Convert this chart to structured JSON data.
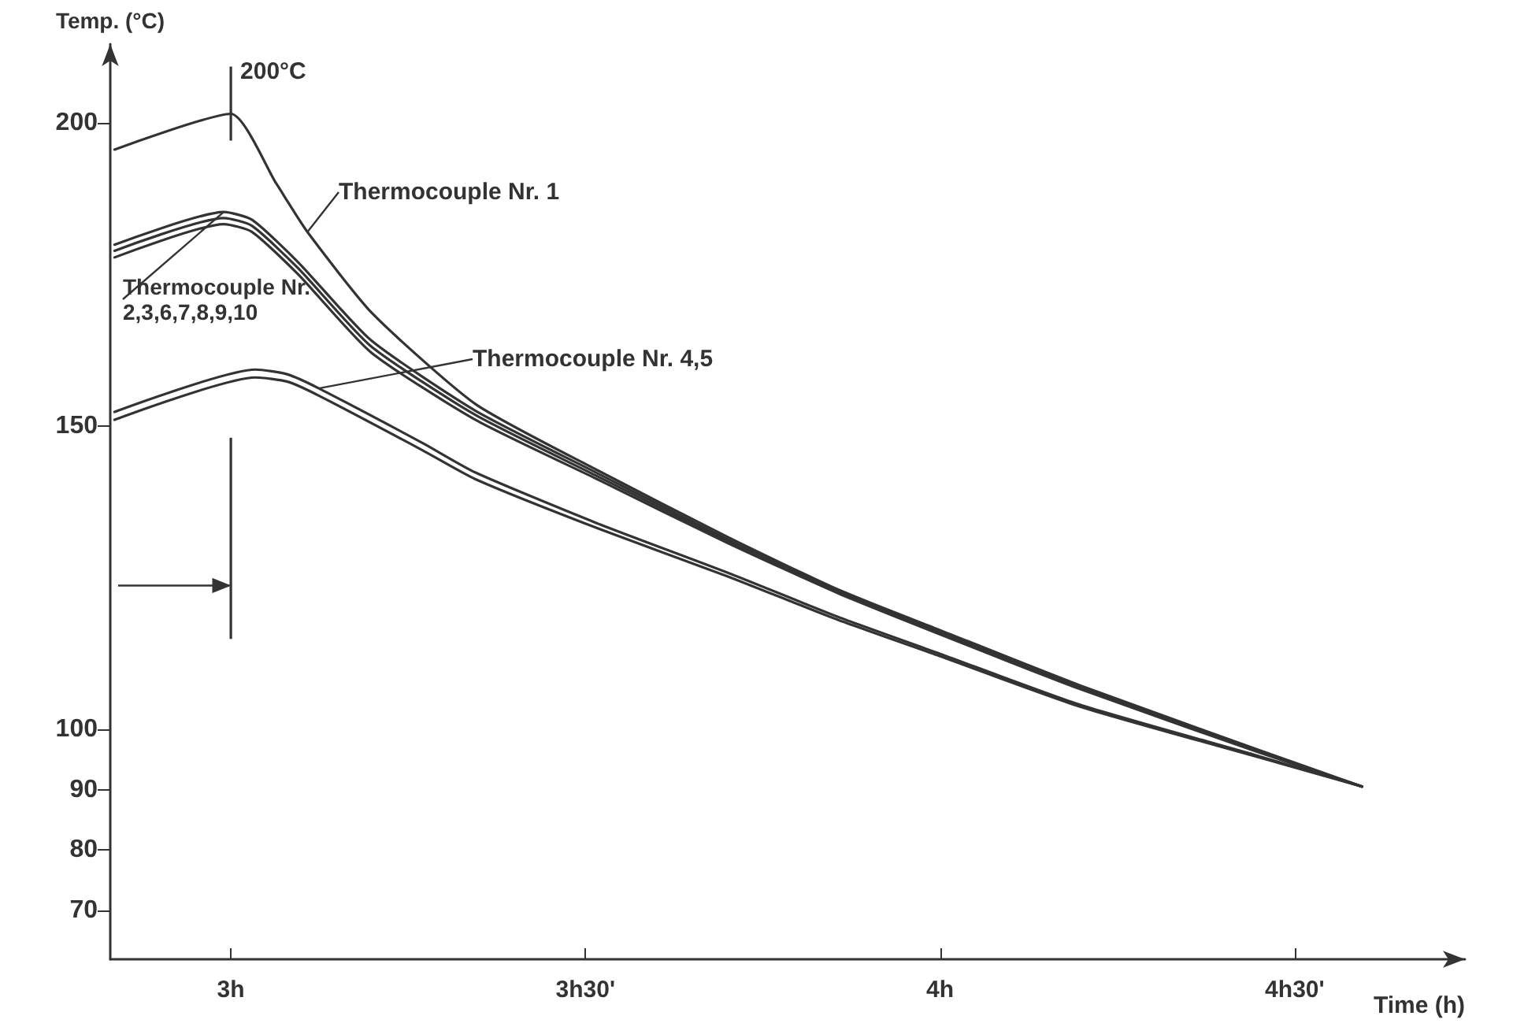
{
  "chart_data": {
    "type": "line",
    "xlabel": "Time (h)",
    "ylabel": "Temp. (°C)",
    "xlim": [
      2.83,
      4.74
    ],
    "ylim": [
      62,
      213
    ],
    "xticks": [
      {
        "value": 3,
        "label": "3h"
      },
      {
        "value": 3.5,
        "label": "3h30'"
      },
      {
        "value": 4,
        "label": "4h"
      },
      {
        "value": 4.5,
        "label": "4h30'"
      }
    ],
    "yticks": [
      70,
      80,
      90,
      100,
      150,
      200
    ],
    "grid": false,
    "legend": false,
    "marker": "none",
    "line_style": "solid",
    "annotations": [
      {
        "text": "200°C",
        "x": 3,
        "y": 201.5
      }
    ],
    "series": [
      {
        "name": "Thermocouple Nr. 1",
        "color": "#333333",
        "x": [
          2.836,
          3.0,
          3.064,
          3.108,
          3.2,
          3.345,
          3.515,
          3.7,
          3.856,
          4.0,
          4.197,
          4.45,
          4.595
        ],
        "values": [
          195.6,
          201.5,
          190,
          182,
          168.5,
          153.6,
          142.8,
          131.7,
          123,
          116.3,
          107.2,
          96.5,
          90.5
        ]
      },
      {
        "name": "Thermocouple Nr. 2,3,6,7,8,9,10",
        "color": "#333333",
        "x": [
          2.836,
          2.99,
          3.03,
          3.095,
          3.197,
          3.345,
          3.515,
          3.7,
          3.856,
          4.0,
          4.197,
          4.45,
          4.595
        ],
        "values": [
          179.9,
          185.3,
          184,
          177,
          164.2,
          152.5,
          142.3,
          131.3,
          122.8,
          116,
          107,
          96.3,
          90.5
        ]
      },
      {
        "color": "#333333",
        "x": [
          2.836,
          2.99,
          3.03,
          3.095,
          3.197,
          3.345,
          3.515,
          3.7,
          3.856,
          4.0,
          4.197,
          4.45,
          4.595
        ],
        "values": [
          178.9,
          184.3,
          183,
          176,
          163.2,
          151.8,
          141.8,
          131,
          122.6,
          115.8,
          106.8,
          96.2,
          90.5
        ]
      },
      {
        "color": "#333333",
        "x": [
          2.836,
          2.99,
          3.03,
          3.095,
          3.197,
          3.345,
          3.515,
          3.7,
          3.856,
          4.0,
          4.197,
          4.45,
          4.595
        ],
        "values": [
          177.8,
          183.3,
          182,
          175,
          162.2,
          151,
          141.3,
          130.7,
          122.4,
          115.6,
          106.6,
          96.1,
          90.5
        ]
      },
      {
        "name": "Thermocouple Nr. 4,5",
        "color": "#333333",
        "x": [
          2.836,
          3.035,
          3.08,
          3.124,
          3.27,
          3.345,
          3.515,
          3.7,
          3.856,
          4.0,
          4.197,
          4.45,
          4.595
        ],
        "values": [
          152.3,
          159.3,
          158.5,
          156.2,
          147.2,
          142.3,
          134,
          125.8,
          118.5,
          112.4,
          104,
          95.5,
          90.5
        ]
      },
      {
        "color": "#333333",
        "x": [
          2.836,
          3.035,
          3.08,
          3.124,
          3.27,
          3.345,
          3.515,
          3.7,
          3.856,
          4.0,
          4.197,
          4.45,
          4.595
        ],
        "values": [
          151,
          158,
          157.3,
          155,
          146,
          141.2,
          133.2,
          125.2,
          118,
          112,
          103.7,
          95.3,
          90.5
        ]
      }
    ]
  }
}
